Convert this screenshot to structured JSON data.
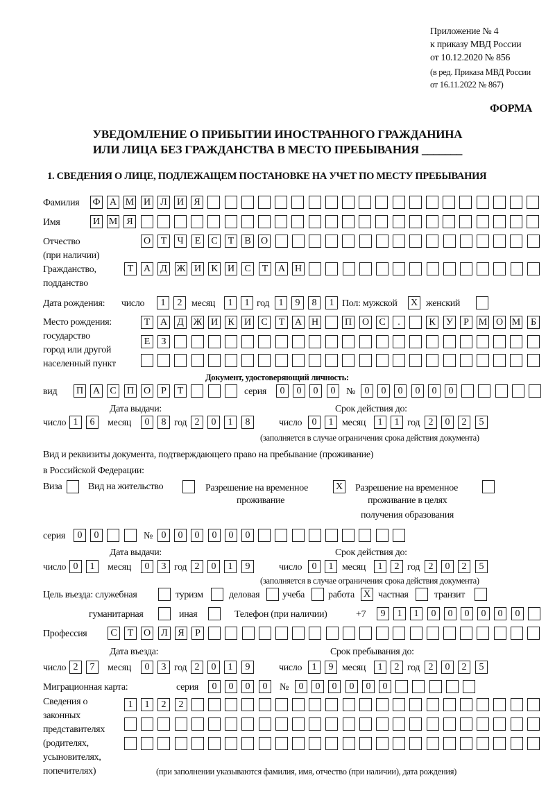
{
  "header": {
    "appendix": [
      "Приложение № 4",
      "к приказу МВД России",
      "от 10.12.2020 № 856"
    ],
    "amendment": [
      "(в ред. Приказа МВД России",
      "от 16.11.2022 № 867)"
    ],
    "form_label": "ФОРМА",
    "title_line1": "УВЕДОМЛЕНИЕ О ПРИБЫТИИ ИНОСТРАННОГО ГРАЖДАНИНА",
    "title_line2": "ИЛИ ЛИЦА БЕЗ ГРАЖДАНСТВА В МЕСТО ПРЕБЫВАНИЯ _______",
    "section1": "1. СВЕДЕНИЯ О ЛИЦЕ, ПОДЛЕЖАЩЕМ ПОСТАНОВКЕ НА УЧЕТ ПО МЕСТУ ПРЕБЫВАНИЯ"
  },
  "labels": {
    "surname": "Фамилия",
    "name": "Имя",
    "patronymic": "Отчество",
    "patronymic_note": "(при наличии)",
    "citizenship": "Гражданство,",
    "citizenship2": "подданство",
    "birth_date": "Дата рождения:",
    "day": "число",
    "month": "месяц",
    "year": "год",
    "sex": "Пол: мужской",
    "female": "женский",
    "birthplace": [
      "Место рождения:",
      "государство",
      "город или другой",
      "населенный пункт"
    ],
    "id_doc": "Документ, удостоверяющий личность:",
    "kind": "вид",
    "series": "серия",
    "number": "№",
    "issue_date": "Дата выдачи:",
    "valid_until": "Срок действия до:",
    "valid_note": "(заполняется в случае ограничения срока действия документа)",
    "right_doc_line1": "Вид и реквизиты документа, подтверждающего право на пребывание (проживание)",
    "right_doc_line2": "в Российской Федерации:",
    "visa": "Виза",
    "residence": "Вид на жительство",
    "temp_residence": [
      "Разрешение на временное",
      "проживание"
    ],
    "temp_residence_edu": [
      "Разрешение на временное",
      "проживание в целях",
      "получения образования"
    ],
    "purpose": "Цель въезда: служебная",
    "tourism": "туризм",
    "business": "деловая",
    "study": "учеба",
    "work": "работа",
    "private": "частная",
    "transit": "транзит",
    "humanitarian": "гуманитарная",
    "other": "иная",
    "phone": "Телефон (при наличии)",
    "phone_prefix": "+7",
    "profession": "Профессия",
    "entry_date": "Дата въезда:",
    "stay_until": "Срок пребывания до:",
    "migration_card": "Миграционная карта:",
    "representatives": [
      "Сведения о",
      "законных",
      "представителях",
      "(родителях,",
      "усыновителях,",
      "попечителях)"
    ],
    "representatives_note": "(при заполнении указываются фамилия, имя, отчество (при наличии), дата рождения)"
  },
  "fields": {
    "surname": "ФАМИЛИЯ",
    "name": "ИМЯ",
    "patronymic": "ОТЧЕСТВО",
    "citizenship": "ТАДЖИКИСТАН",
    "birth_day": "12",
    "birth_month": "11",
    "birth_year": "1981",
    "sex_male": true,
    "sex_female": false,
    "birthplace_1": "ТАДЖИКИСТАН ПОС. КУРМОМБ",
    "birthplace_2": "ЕЗ",
    "birthplace_3": "",
    "id_kind": "ПАСПОРТ",
    "id_series": "0000",
    "id_number": "000000",
    "id_issue_day": "16",
    "id_issue_month": "08",
    "id_issue_year": "2018",
    "id_valid_day": "01",
    "id_valid_month": "11",
    "id_valid_year": "2025",
    "right_visa": false,
    "right_residence": false,
    "right_temp_residence": true,
    "right_temp_residence_edu": false,
    "right_series": "00",
    "right_number": "000000",
    "right_issue_day": "01",
    "right_issue_month": "03",
    "right_issue_year": "2019",
    "right_valid_day": "01",
    "right_valid_month": "12",
    "right_valid_year": "2025",
    "purpose_official": false,
    "purpose_tourism": false,
    "purpose_business": false,
    "purpose_study": false,
    "purpose_work": true,
    "purpose_private": false,
    "purpose_transit": false,
    "purpose_humanitarian": false,
    "purpose_other": false,
    "phone": "911000000",
    "profession": "СТОЛЯР",
    "entry_day": "27",
    "entry_month": "03",
    "entry_year": "2019",
    "stay_day": "19",
    "stay_month": "12",
    "stay_year": "2025",
    "mig_series": "0000",
    "mig_number": "000000",
    "representatives_1": "1122",
    "representatives_2": "",
    "representatives_3": ""
  },
  "check_mark": "X"
}
